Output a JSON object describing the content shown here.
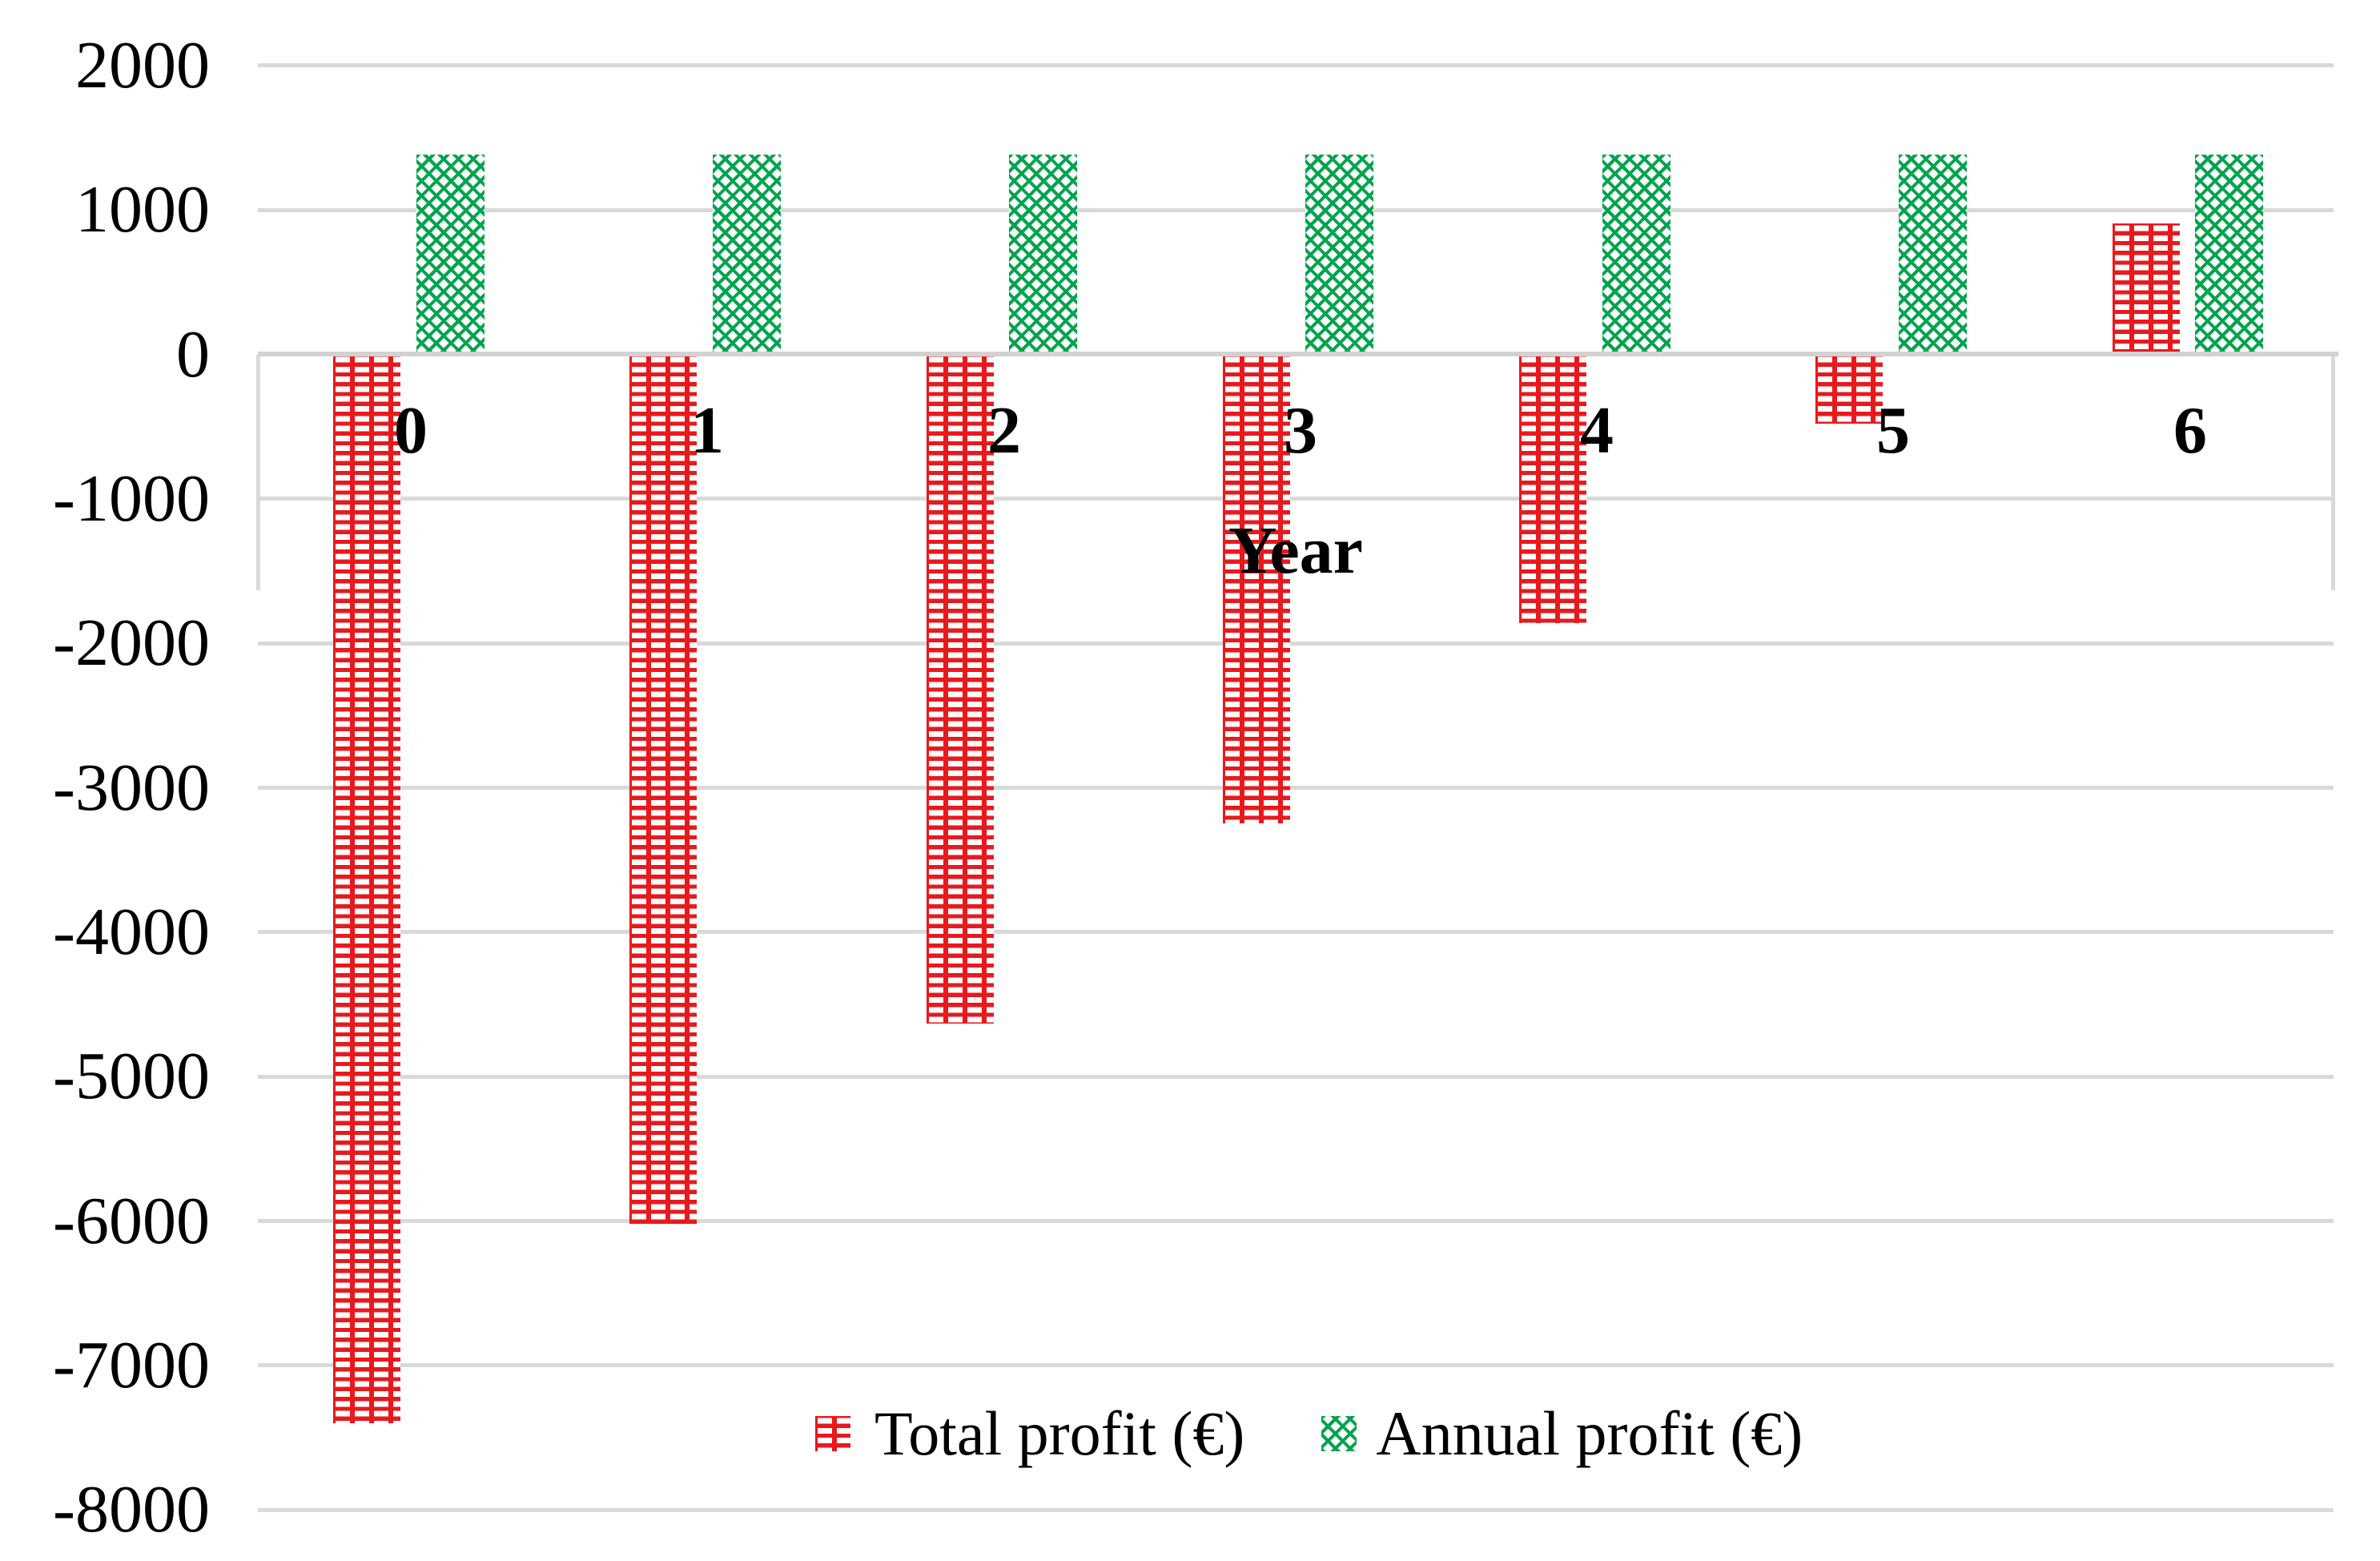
{
  "chart_data": {
    "type": "bar",
    "title": "",
    "categories": [
      "0",
      "1",
      "2",
      "3",
      "4",
      "5",
      "6"
    ],
    "xlabel": "Year",
    "ylabel": "",
    "ylim": [
      -8000,
      2000
    ],
    "ytick_step": 1000,
    "yticks": [
      2000,
      1000,
      0,
      -1000,
      -2000,
      -3000,
      -4000,
      -5000,
      -6000,
      -7000,
      -8000
    ],
    "ytick_labels": [
      "2000",
      "1000",
      "0",
      "-1000",
      "-2000",
      "-3000",
      "-4000",
      "-5000",
      "-6000",
      "-7000",
      "-8000"
    ],
    "grid": true,
    "legend_position": "bottom-center",
    "series": [
      {
        "name": "Total profit (€)",
        "color": "#e8191d",
        "pattern": "red-white-dash-grid",
        "values": [
          -7400,
          -6015,
          -4630,
          -3245,
          -1860,
          -475,
          910
        ]
      },
      {
        "name": "Annual profit (€)",
        "color": "#00a44d",
        "pattern": "green-diagonal-check",
        "values": [
          1385,
          1385,
          1385,
          1385,
          1385,
          1385,
          1385
        ]
      }
    ]
  },
  "colors": {
    "background": "#ffffff",
    "gridline": "#d9d9d9",
    "zero_axis_line": "#d2d2d2",
    "axis_label_text": "#000000",
    "total_profit_red": "#e8191d",
    "annual_profit_green": "#00a44d"
  }
}
